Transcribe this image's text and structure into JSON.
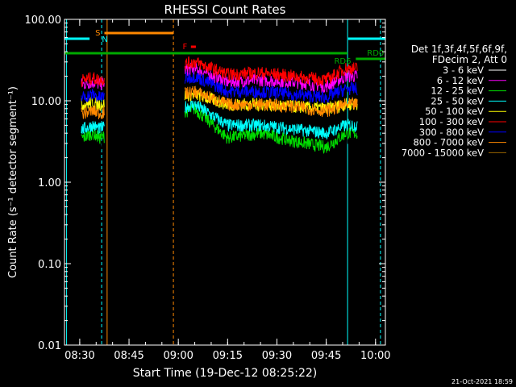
{
  "chart_data": {
    "type": "line",
    "title": "RHESSI Count Rates",
    "xlabel": "Start Time (19-Dec-12 08:25:22)",
    "ylabel": "Count Rate (s⁻¹ detector segment⁻¹)",
    "yscale": "log",
    "ylim": [
      0.01,
      100
    ],
    "xlim": [
      "08:25:22",
      "10:03:00"
    ],
    "x_ticks": [
      "08:30",
      "08:45",
      "09:00",
      "09:15",
      "09:30",
      "09:45",
      "10:00"
    ],
    "y_ticks": [
      "0.01",
      "0.10",
      "1.00",
      "10.00",
      "100.00"
    ],
    "grid": false,
    "legend_position": "right",
    "legend_header": [
      "Det 1f,3f,4f,5f,6f,9f,",
      "FDecim 2, Att 0"
    ],
    "footer_date": "21-Oct-2021 18:59",
    "series": [
      {
        "name": "3 - 6 keV",
        "color": "#000000",
        "x": [
          "08:31",
          "08:34",
          "08:36",
          "09:05",
          "09:15",
          "09:25",
          "09:35",
          "09:45",
          "09:51"
        ],
        "values": [
          2.5,
          3,
          2.7,
          10,
          6.5,
          7,
          6.5,
          5.5,
          3.5
        ]
      },
      {
        "name": "6 - 12 keV",
        "color": "#ff00ff",
        "x": [
          "08:31",
          "08:34",
          "08:36",
          "09:05",
          "09:15",
          "09:25",
          "09:35",
          "09:45",
          "09:51"
        ],
        "values": [
          16,
          17,
          16,
          25,
          17,
          18,
          17,
          15,
          20
        ]
      },
      {
        "name": "12 - 25 keV",
        "color": "#00dd00",
        "x": [
          "08:31",
          "08:34",
          "08:36",
          "09:05",
          "09:15",
          "09:25",
          "09:35",
          "09:45",
          "09:51"
        ],
        "values": [
          3.5,
          4,
          3.5,
          8,
          3.5,
          4,
          3.2,
          2.7,
          4
        ]
      },
      {
        "name": "25 - 50 keV",
        "color": "#00ffff",
        "x": [
          "08:31",
          "08:34",
          "08:36",
          "09:05",
          "09:15",
          "09:25",
          "09:35",
          "09:45",
          "09:51"
        ],
        "values": [
          4.5,
          5,
          4.5,
          9,
          5,
          5,
          4.5,
          4,
          5
        ]
      },
      {
        "name": "50 - 100 keV",
        "color": "#ffff00",
        "x": [
          "08:31",
          "08:34",
          "08:36",
          "09:05",
          "09:15",
          "09:25",
          "09:35",
          "09:45",
          "09:51"
        ],
        "values": [
          9,
          9.5,
          9,
          12,
          9,
          9,
          8.5,
          8,
          9
        ]
      },
      {
        "name": "100 - 300 keV",
        "color": "#ff0000",
        "x": [
          "08:31",
          "08:34",
          "08:36",
          "09:05",
          "09:15",
          "09:25",
          "09:35",
          "09:45",
          "09:51"
        ],
        "values": [
          18,
          19,
          18,
          30,
          21,
          22,
          20,
          18,
          25
        ]
      },
      {
        "name": "300 - 800 keV",
        "color": "#0000ff",
        "x": [
          "08:31",
          "08:34",
          "08:36",
          "09:05",
          "09:15",
          "09:25",
          "09:35",
          "09:45",
          "09:51"
        ],
        "values": [
          11,
          12,
          11,
          20,
          13,
          13,
          12,
          11,
          14
        ]
      },
      {
        "name": "800 - 7000 keV",
        "color": "#ff8800",
        "x": [
          "08:31",
          "08:34",
          "08:36",
          "09:05",
          "09:15",
          "09:25",
          "09:35",
          "09:45",
          "09:51"
        ],
        "values": [
          7,
          7.5,
          7,
          13,
          9,
          9,
          8.5,
          7.5,
          9
        ]
      },
      {
        "name": "7000 - 15000 keV",
        "color": "#996600",
        "x": [],
        "values": []
      }
    ],
    "flags": [
      {
        "label": "S",
        "color": "#ff8800"
      },
      {
        "label": "N",
        "color": "#00ffff"
      },
      {
        "label": "F",
        "color": "#ff0000"
      },
      {
        "label": "RD0",
        "color": "#00aa00"
      },
      {
        "label": "RD6",
        "color": "#00aa00"
      }
    ]
  }
}
